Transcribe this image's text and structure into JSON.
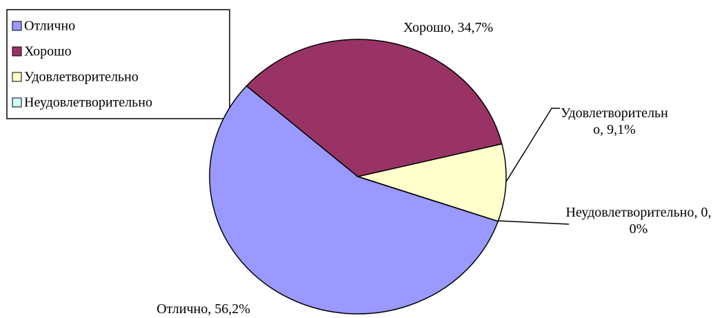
{
  "chart_data": {
    "type": "pie",
    "categories": [
      "Отлично",
      "Хорошо",
      "Удовлетворительно",
      "Неудовлетворительно"
    ],
    "values": [
      56.2,
      34.7,
      9.1,
      0.0
    ],
    "value_labels": [
      "Отлично, 56,2%",
      "Хорошо, 34,7%",
      "Удовлетворительно, 9,1%",
      "Неудовлетворительно, 0,0%"
    ],
    "colors": [
      "#9999ff",
      "#993366",
      "#ffffcc",
      "#ccffff"
    ],
    "legend": "upper left"
  }
}
